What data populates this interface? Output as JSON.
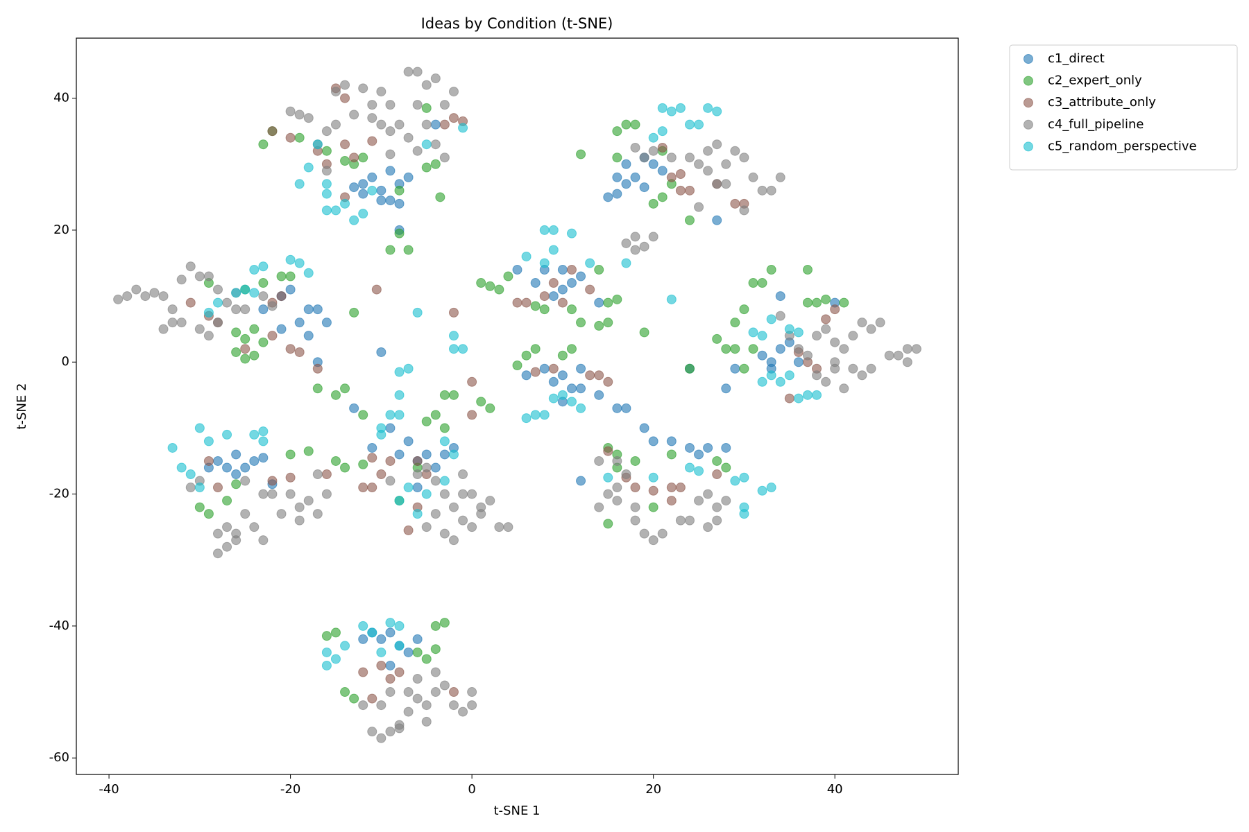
{
  "chart_data": {
    "type": "scatter",
    "title": "Ideas by Condition (t-SNE)",
    "x_label": "t-SNE 1",
    "y_label": "t-SNE 2",
    "xlim": [
      -43.6,
      53.6
    ],
    "ylim": [
      -62.5,
      49.1
    ],
    "xticks": [
      -40,
      -20,
      0,
      20,
      40
    ],
    "yticks": [
      -60,
      -40,
      -20,
      0,
      20,
      40
    ],
    "alpha": 0.6,
    "legend": "outside-upper-right",
    "series": [
      {
        "name": "c1_direct",
        "color": "#1f77b4",
        "x": [
          -12,
          -11,
          -10,
          -9,
          -8,
          -10,
          -9,
          -8,
          -12,
          -13,
          -7,
          -4,
          -8,
          16,
          17,
          18,
          19,
          20,
          17,
          15,
          16,
          19,
          21,
          27,
          -20,
          -19,
          -18,
          -17,
          -21,
          -16,
          -18,
          -17,
          -23,
          -21,
          5,
          7,
          8,
          10,
          11,
          12,
          10,
          9,
          14,
          6,
          8,
          9,
          10,
          11,
          12,
          10,
          12,
          14,
          16,
          17,
          19,
          32,
          33,
          34,
          35,
          33,
          34,
          29,
          28,
          36,
          40,
          24,
          -28,
          -27,
          -26,
          -25,
          -24,
          -26,
          -29,
          -23,
          -22,
          -11,
          -8,
          -7,
          -6,
          -5,
          -4,
          -3,
          -2,
          -9,
          -10,
          -13,
          -6,
          12,
          20,
          22,
          24,
          26,
          28,
          25,
          -11,
          -10,
          -9,
          -8,
          -7,
          -9,
          -12,
          -6
        ],
        "values": [
          27,
          28,
          26,
          29,
          27,
          24.5,
          24.5,
          24,
          25.5,
          26.5,
          28,
          36,
          20,
          28,
          30,
          28,
          31,
          30,
          27,
          25,
          25.5,
          26.5,
          29,
          21.5,
          11,
          6,
          8,
          8,
          5,
          6,
          4,
          0,
          8,
          10,
          14,
          12,
          14,
          14,
          12,
          13,
          11,
          10,
          9,
          -2,
          -1,
          -3,
          -2,
          -4,
          -4,
          -6,
          -1,
          -5,
          -7,
          -7,
          -10,
          1,
          0,
          2,
          3,
          -1,
          10,
          -1,
          -4,
          0,
          9,
          -1,
          -15,
          -16,
          -14,
          -16,
          -15,
          -17,
          -16,
          -14.5,
          -18.5,
          -13,
          -14,
          -12,
          -15,
          -14,
          -16,
          -14,
          -13,
          -10,
          1.5,
          -7,
          -19,
          -18,
          -12,
          -12,
          -13,
          -13,
          -13,
          -14,
          -41,
          -42,
          -41,
          -43,
          -44,
          -46,
          -42,
          -42
        ]
      },
      {
        "name": "c2_expert_only",
        "color": "#2ca02c",
        "x": [
          -23,
          -22,
          -19,
          -16,
          -14,
          -13,
          -12,
          -5,
          -4,
          -3.5,
          -8,
          -8,
          -9,
          -7,
          -5,
          16,
          17,
          18,
          16,
          21,
          21,
          22,
          24,
          12,
          20,
          -29,
          -25,
          -23,
          -21,
          -20,
          -24,
          -25,
          -26,
          -24,
          -23,
          -26,
          -25,
          -13,
          1,
          2,
          3,
          4,
          8,
          11,
          12,
          14,
          15,
          15,
          16,
          19,
          7,
          14,
          28,
          29,
          30,
          31,
          32,
          33,
          37,
          37,
          38,
          39,
          41,
          27,
          31,
          24,
          29,
          30,
          5,
          6,
          7,
          10,
          11,
          -17,
          -15,
          -14,
          -12,
          -4,
          -3,
          -3,
          -2,
          1,
          2,
          -30,
          -29,
          -27,
          -26,
          -20,
          -18,
          -15,
          -14,
          -12,
          -8,
          -6,
          -5,
          15,
          16,
          16,
          18,
          22,
          27,
          28,
          15,
          20,
          -16,
          -15,
          -14,
          -13,
          -6,
          -5,
          -4,
          -3,
          -4
        ],
        "values": [
          33,
          35,
          34,
          32,
          30.5,
          30,
          31,
          29.5,
          30,
          25,
          26,
          19.5,
          17,
          17,
          38.5,
          35,
          36,
          36,
          31,
          25,
          32,
          27,
          21.5,
          31.5,
          24,
          12,
          11,
          12,
          13,
          13,
          5,
          3.5,
          1.5,
          1,
          3,
          4.5,
          0.5,
          7.5,
          12,
          11.5,
          11,
          13,
          8,
          8,
          6,
          14,
          6,
          9,
          9.5,
          4.5,
          8.5,
          5.5,
          2,
          6,
          8,
          12,
          12,
          14,
          14,
          9,
          9,
          9.5,
          9,
          3.5,
          2,
          -1,
          2,
          -1,
          -0.5,
          1,
          2,
          1,
          2,
          -4,
          -5,
          -4,
          -8,
          -8,
          -10,
          -5,
          -5,
          -6,
          -7,
          -22,
          -23,
          -21,
          -18.5,
          -14,
          -13.5,
          -15,
          -16,
          -15.5,
          -21,
          -16,
          -9,
          -13,
          -14,
          -16,
          -15,
          -14,
          -15,
          -16,
          -24.5,
          -22,
          -41.5,
          -41,
          -50,
          -51,
          -44,
          -45,
          -40,
          -39.5,
          -43.5
        ]
      },
      {
        "name": "c3_attribute_only",
        "color": "#8c564b",
        "x": [
          -15,
          -14,
          -14,
          -13,
          -11,
          -2,
          -1,
          -3,
          -22,
          -20,
          -17,
          -16,
          -14,
          21,
          22,
          23,
          24,
          27,
          29,
          30,
          23,
          -31,
          -29,
          -28,
          -22,
          -21,
          -20,
          -22,
          -19,
          -25,
          -17,
          -10.5,
          -2,
          5,
          6,
          8,
          9,
          10,
          11,
          13,
          7,
          9,
          13,
          15,
          14,
          35,
          36,
          37,
          38,
          39,
          40,
          -29,
          -28,
          -22,
          -20,
          -16,
          -12,
          -11,
          -10,
          -9,
          -11,
          -6,
          -5,
          -6,
          -7,
          0,
          0,
          18,
          20,
          22,
          23,
          22,
          27,
          17,
          15,
          -12,
          -11,
          -9,
          -8,
          -2,
          -10
        ],
        "values": [
          41.5,
          40,
          33,
          31,
          33.5,
          37,
          36.5,
          36,
          35,
          34,
          32,
          30,
          25,
          32.5,
          28,
          26,
          26,
          27,
          24,
          24,
          28.5,
          9,
          7,
          6,
          9,
          10,
          2,
          4,
          1.5,
          2,
          -1,
          11,
          7.5,
          9,
          9,
          10,
          12,
          9,
          14,
          11,
          -1.5,
          -1,
          -2,
          -3,
          -2,
          -5.5,
          1.5,
          0,
          -1,
          6.5,
          8,
          -15,
          -19,
          -18,
          -17.5,
          -17,
          -19,
          -19,
          -17,
          -15,
          -14.5,
          -15,
          -17,
          -22,
          -25.5,
          -8,
          -3,
          -19,
          -19.5,
          -19,
          -19,
          -21,
          -17,
          -17.5,
          -13.5,
          -47,
          -51,
          -48,
          -47,
          -50,
          -46
        ]
      },
      {
        "name": "c4_full_pipeline",
        "color": "#7f7f7f",
        "x": [
          -20,
          -19,
          -18,
          -15,
          -14,
          -12,
          -10,
          -9,
          -7,
          -6,
          -5,
          -4,
          -2,
          -3,
          -6,
          -9,
          -10,
          -11,
          -13,
          -15,
          -16,
          -17,
          -11,
          -8,
          -5,
          -7,
          -9,
          -6,
          -4,
          -3,
          -16,
          19,
          20,
          22,
          24,
          26,
          27,
          29,
          30,
          25,
          26,
          28,
          31,
          32,
          33,
          34,
          30,
          25,
          27,
          28,
          18,
          17,
          18,
          19,
          20,
          18,
          -39,
          -38,
          -37,
          -36,
          -35,
          -34,
          -33,
          -32,
          -31,
          -30,
          -29,
          -28,
          -27,
          -26,
          -34,
          -33,
          -30,
          -29,
          -28,
          -26,
          -25,
          -22,
          -23,
          -32,
          34,
          35,
          36,
          37,
          38,
          39,
          40,
          41,
          42,
          43,
          44,
          45,
          42,
          43,
          40,
          41,
          38,
          39,
          40,
          47,
          48,
          49,
          48,
          46,
          44,
          -31,
          -30,
          -28,
          -27,
          -27,
          -26,
          -25,
          -24,
          -23,
          -25,
          -23,
          -22,
          -21,
          -20,
          -19,
          -18,
          -19,
          -17,
          -16,
          -17,
          -26,
          -28,
          -5,
          -4,
          -3,
          -2,
          -1,
          0,
          1,
          2,
          3,
          4,
          -4,
          -5,
          -2,
          -3,
          0,
          -1,
          1,
          -6,
          -9,
          -1,
          17,
          16,
          15,
          14,
          16,
          18,
          18,
          19,
          20,
          21,
          23,
          25,
          26,
          27,
          28,
          26,
          27,
          24,
          14,
          16,
          -11,
          -10,
          -9,
          -8,
          -7,
          -6,
          -5,
          -4,
          -3,
          -2,
          -1,
          0,
          0,
          -9,
          -7,
          -6,
          -10,
          -12,
          -8,
          -5,
          -4
        ],
        "values": [
          38,
          37.5,
          37,
          41,
          42,
          41.5,
          41,
          39,
          44,
          44,
          42,
          43,
          41,
          39,
          39,
          35,
          36,
          37,
          37.5,
          36,
          35,
          33,
          39,
          36,
          36,
          34,
          31.5,
          32,
          33,
          31,
          29,
          31,
          32,
          31,
          31,
          32,
          33,
          32,
          31,
          30,
          29,
          30,
          28,
          26,
          26,
          28,
          23,
          23.5,
          27,
          27,
          32.5,
          18,
          19,
          17.5,
          19,
          17,
          9.5,
          10,
          11,
          10,
          10.5,
          10,
          8,
          12.5,
          14.5,
          13,
          13,
          11,
          9,
          10.5,
          5,
          6,
          5,
          4,
          6,
          8,
          8,
          8.5,
          10,
          6,
          7,
          4,
          2,
          1,
          4,
          5,
          3,
          2,
          4,
          6,
          5,
          6,
          -1,
          -2,
          -1,
          -4,
          -2,
          -3,
          0,
          1,
          2,
          2,
          0,
          1,
          -1,
          -19,
          -18,
          -26,
          -28,
          -25,
          -26,
          -23,
          -25,
          -27,
          -18,
          -20,
          -20,
          -23,
          -20,
          -22,
          -21,
          -24,
          -23,
          -20,
          -17,
          -27,
          -29,
          -16,
          -18,
          -20,
          -22,
          -24,
          -25,
          -23,
          -21,
          -25,
          -25,
          -23,
          -25,
          -27,
          -26,
          -20,
          -20,
          -22,
          -17,
          -18,
          -17,
          -17,
          -19,
          -20,
          -22,
          -21,
          -22,
          -24,
          -26,
          -27,
          -26,
          -24,
          -21,
          -20,
          -22,
          -21,
          -25,
          -24,
          -24,
          -15,
          -15,
          -56,
          -57,
          -56,
          -55,
          -53,
          -51,
          -52,
          -50,
          -49,
          -52,
          -53,
          -52,
          -50,
          -50,
          -50,
          -48,
          -52,
          -52,
          -55.5,
          -54.5,
          -47
        ]
      },
      {
        "name": "c5_random_perspective",
        "color": "#17becf",
        "x": [
          -17,
          -18,
          -16,
          -16,
          -15,
          -14,
          -16,
          -13,
          -12,
          -19,
          -5,
          -1,
          -11,
          21,
          22,
          23,
          24,
          25,
          26,
          27,
          21,
          20,
          -20,
          -19,
          -18,
          -24,
          -23,
          -25,
          -26,
          -24,
          -28,
          -29,
          8,
          9,
          11,
          6,
          8,
          9,
          13,
          17,
          22,
          -6,
          -2,
          -2,
          -1,
          -7,
          -8,
          -8,
          -9,
          -8,
          -10,
          -10,
          6,
          7,
          8,
          9,
          10,
          11,
          12,
          31,
          32,
          33,
          35,
          36,
          32,
          33,
          34,
          35,
          37,
          38,
          36,
          -33,
          -32,
          -31,
          -30,
          -30,
          -29,
          -27,
          -24,
          -23,
          -23,
          -8,
          -7,
          -5,
          -6,
          -3,
          -2,
          -3,
          15,
          20,
          24,
          25,
          29,
          30,
          30,
          30,
          32,
          33,
          -16,
          -15,
          -14,
          -12,
          -11,
          -9,
          -8,
          -10,
          -8,
          -16
        ],
        "values": [
          33,
          29.5,
          27,
          25.5,
          23,
          24,
          23,
          21.5,
          22.5,
          27,
          33,
          35.5,
          26,
          38.5,
          38,
          38.5,
          36,
          36,
          38.5,
          38,
          35,
          34,
          15.5,
          15,
          13.5,
          14,
          14.5,
          11,
          10.5,
          10.5,
          9,
          7.5,
          20,
          20,
          19.5,
          16,
          15,
          17,
          15,
          15,
          9.5,
          7.5,
          4,
          2,
          2,
          -1,
          -1.5,
          -5,
          -8,
          -8,
          -10,
          -11,
          -8.5,
          -8,
          -8,
          -5.5,
          -5,
          -6,
          -7,
          4.5,
          4,
          6.5,
          5,
          4.5,
          -3,
          -2,
          -3,
          -2,
          -5,
          -5,
          -5.5,
          -13,
          -16,
          -17,
          -10,
          -19,
          -12,
          -11,
          -11,
          -10.5,
          -12,
          -21,
          -19,
          -20,
          -23,
          -12,
          -14,
          -18,
          -17.5,
          -17.5,
          -16,
          -16.5,
          -18,
          -17.5,
          -22,
          -23,
          -19.5,
          -19,
          -44,
          -45,
          -43,
          -40,
          -41,
          -39.5,
          -40,
          -44,
          -43,
          -46
        ]
      }
    ]
  }
}
